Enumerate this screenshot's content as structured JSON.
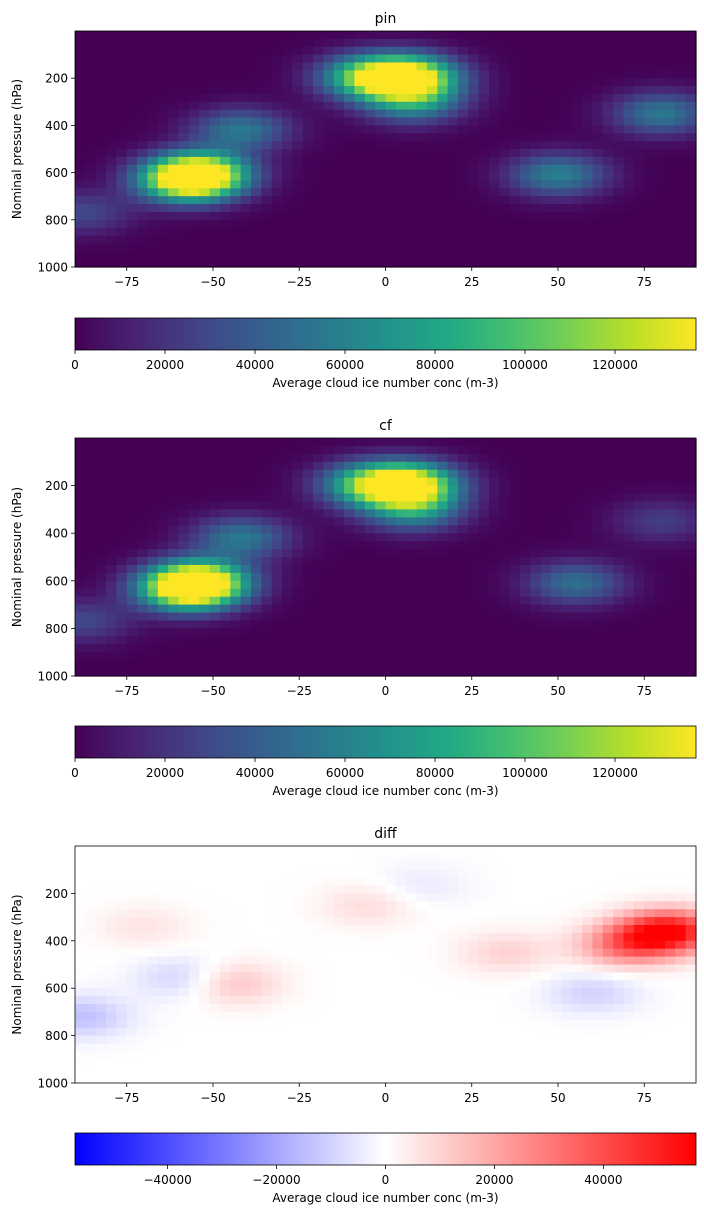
{
  "chart_data": [
    {
      "type": "heatmap",
      "title": "pin",
      "xlabel": "",
      "ylabel": "Nominal pressure (hPa)",
      "xlim": [
        -90,
        90
      ],
      "ylim": [
        1000,
        0
      ],
      "xticks": [
        -75,
        -50,
        -25,
        0,
        25,
        50,
        75
      ],
      "yticks": [
        200,
        400,
        600,
        800,
        1000
      ],
      "colormap": "viridis",
      "colorbar": {
        "label": "Average cloud ice number conc (m-3)",
        "range": [
          0,
          138000
        ],
        "ticks": [
          0,
          20000,
          40000,
          60000,
          80000,
          100000,
          120000
        ]
      },
      "features": [
        {
          "lat": -54,
          "p": 605,
          "value": 138000,
          "desc": "southern midlatitude maximum"
        },
        {
          "lat": -58,
          "p": 640,
          "value": 90000
        },
        {
          "lat": -42,
          "p": 420,
          "value": 55000
        },
        {
          "lat": -5,
          "p": 195,
          "value": 95000
        },
        {
          "lat": 7,
          "p": 195,
          "value": 136000,
          "desc": "tropical upper-troposphere maximum"
        },
        {
          "lat": 8,
          "p": 300,
          "value": 65000
        },
        {
          "lat": 50,
          "p": 610,
          "value": 60000
        },
        {
          "lat": 80,
          "p": 350,
          "value": 55000
        },
        {
          "lat": -88,
          "p": 770,
          "value": 30000
        }
      ]
    },
    {
      "type": "heatmap",
      "title": "cf",
      "xlabel": "",
      "ylabel": "Nominal pressure (hPa)",
      "xlim": [
        -90,
        90
      ],
      "ylim": [
        1000,
        0
      ],
      "xticks": [
        -75,
        -50,
        -25,
        0,
        25,
        50,
        75
      ],
      "yticks": [
        200,
        400,
        600,
        800,
        1000
      ],
      "colormap": "viridis",
      "colorbar": {
        "label": "Average cloud ice number conc (m-3)",
        "range": [
          0,
          138000
        ],
        "ticks": [
          0,
          20000,
          40000,
          60000,
          80000,
          100000,
          120000
        ]
      },
      "features": [
        {
          "lat": -54,
          "p": 605,
          "value": 138000
        },
        {
          "lat": -58,
          "p": 640,
          "value": 95000
        },
        {
          "lat": -42,
          "p": 420,
          "value": 55000
        },
        {
          "lat": -5,
          "p": 195,
          "value": 85000
        },
        {
          "lat": 7,
          "p": 195,
          "value": 135000
        },
        {
          "lat": 8,
          "p": 300,
          "value": 65000
        },
        {
          "lat": 55,
          "p": 610,
          "value": 50000
        },
        {
          "lat": 80,
          "p": 350,
          "value": 25000
        },
        {
          "lat": -88,
          "p": 770,
          "value": 30000
        }
      ]
    },
    {
      "type": "heatmap",
      "title": "diff",
      "xlabel": "",
      "ylabel": "Nominal pressure (hPa)",
      "xlim": [
        -90,
        90
      ],
      "ylim": [
        1000,
        0
      ],
      "xticks": [
        -75,
        -50,
        -25,
        0,
        25,
        50,
        75
      ],
      "yticks": [
        200,
        400,
        600,
        800,
        1000
      ],
      "colormap": "bwr",
      "colorbar": {
        "label": "Average cloud ice number conc (m-3)",
        "range": [
          -57000,
          57000
        ],
        "ticks": [
          -40000,
          -20000,
          0,
          20000,
          40000
        ]
      },
      "features": [
        {
          "lat": 82,
          "p": 360,
          "value": 55000,
          "desc": "positive difference maximum"
        },
        {
          "lat": 70,
          "p": 420,
          "value": 30000
        },
        {
          "lat": 35,
          "p": 450,
          "value": 10000
        },
        {
          "lat": -45,
          "p": 580,
          "value": 15000
        },
        {
          "lat": -70,
          "p": 340,
          "value": 6000
        },
        {
          "lat": -5,
          "p": 250,
          "value": 8000
        },
        {
          "lat": -58,
          "p": 560,
          "value": -12000
        },
        {
          "lat": -88,
          "p": 720,
          "value": -14000
        },
        {
          "lat": 60,
          "p": 620,
          "value": -10000
        },
        {
          "lat": 10,
          "p": 170,
          "value": -5000
        }
      ]
    }
  ]
}
